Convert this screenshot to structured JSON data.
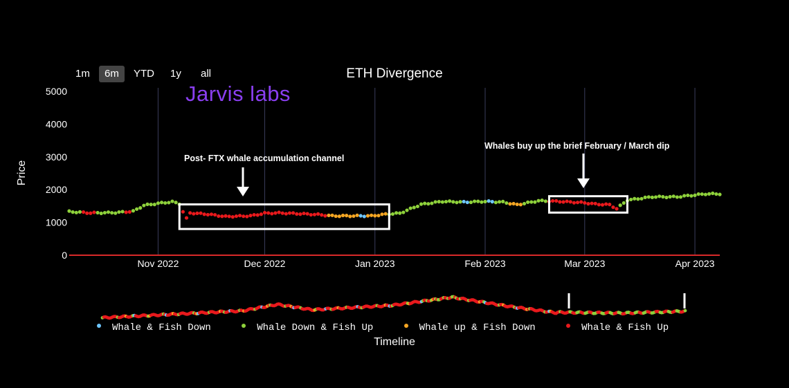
{
  "range_buttons": [
    {
      "label": "1m",
      "active": false
    },
    {
      "label": "6m",
      "active": true
    },
    {
      "label": "YTD",
      "active": false
    },
    {
      "label": "1y",
      "active": false
    },
    {
      "label": "all",
      "active": false
    }
  ],
  "logo_text": "Jarvis labs",
  "annotations": {
    "left": "Post- FTX whale accumulation channel",
    "right": "Whales buy up the brief February / March dip"
  },
  "colors": {
    "whale_fish_down": "#6ec6ff",
    "whale_down_fish_up": "#8ed13b",
    "whale_up_fish_down": "#f5a623",
    "whale_fish_up": "#e8191c",
    "axis": "#d92a2a",
    "grid": "#3a3d5c",
    "box": "#ffffff"
  },
  "chart_data": {
    "type": "scatter",
    "title": "ETH Divergence",
    "xlabel": "Timeline",
    "ylabel": "Price",
    "ylim": [
      0,
      5000
    ],
    "yticks": [
      0,
      1000,
      2000,
      3000,
      4000,
      5000
    ],
    "xlim": [
      "2022-10-07",
      "2023-04-08"
    ],
    "xticks": [
      {
        "date": "2022-11-01",
        "label": "Nov 2022"
      },
      {
        "date": "2022-12-01",
        "label": "Dec 2022"
      },
      {
        "date": "2023-01-01",
        "label": "Jan 2023"
      },
      {
        "date": "2023-02-01",
        "label": "Feb 2023"
      },
      {
        "date": "2023-03-01",
        "label": "Mar 2023"
      },
      {
        "date": "2023-04-01",
        "label": "Apr 2023"
      }
    ],
    "grid": true,
    "legend_position": "bottom",
    "series": [
      {
        "name": "Whale & Fish Down",
        "key": "whale_fish_down"
      },
      {
        "name": "Whale Down & Fish Up",
        "key": "whale_down_fish_up"
      },
      {
        "name": "Whale up & Fish Down",
        "key": "whale_up_fish_down"
      },
      {
        "name": "Whale & Fish Up",
        "key": "whale_fish_up"
      }
    ],
    "segments": [
      {
        "start": "2022-10-07",
        "end": "2022-10-11",
        "key": "whale_down_fish_up"
      },
      {
        "start": "2022-10-11",
        "end": "2022-10-15",
        "key": "whale_fish_up"
      },
      {
        "start": "2022-10-15",
        "end": "2022-10-23",
        "key": "whale_down_fish_up"
      },
      {
        "start": "2022-10-23",
        "end": "2022-10-25",
        "key": "whale_fish_up"
      },
      {
        "start": "2022-10-25",
        "end": "2022-11-08",
        "key": "whale_down_fish_up"
      },
      {
        "start": "2022-11-08",
        "end": "2022-12-19",
        "key": "whale_fish_up"
      },
      {
        "start": "2022-12-19",
        "end": "2022-12-28",
        "key": "whale_up_fish_down"
      },
      {
        "start": "2022-12-28",
        "end": "2022-12-30",
        "key": "whale_fish_down"
      },
      {
        "start": "2022-12-30",
        "end": "2023-01-05",
        "key": "whale_up_fish_down"
      },
      {
        "start": "2023-01-05",
        "end": "2023-01-26",
        "key": "whale_down_fish_up"
      },
      {
        "start": "2023-01-26",
        "end": "2023-01-28",
        "key": "whale_fish_down"
      },
      {
        "start": "2023-01-28",
        "end": "2023-02-02",
        "key": "whale_down_fish_up"
      },
      {
        "start": "2023-02-02",
        "end": "2023-02-04",
        "key": "whale_fish_down"
      },
      {
        "start": "2023-02-04",
        "end": "2023-02-08",
        "key": "whale_down_fish_up"
      },
      {
        "start": "2023-02-08",
        "end": "2023-02-12",
        "key": "whale_up_fish_down"
      },
      {
        "start": "2023-02-12",
        "end": "2023-02-19",
        "key": "whale_down_fish_up"
      },
      {
        "start": "2023-02-19",
        "end": "2023-03-11",
        "key": "whale_fish_up"
      },
      {
        "start": "2023-03-11",
        "end": "2023-04-09",
        "key": "whale_down_fish_up"
      }
    ],
    "price_path": [
      [
        "2022-10-07",
        1330
      ],
      [
        "2022-10-13",
        1290
      ],
      [
        "2022-10-20",
        1300
      ],
      [
        "2022-10-25",
        1340
      ],
      [
        "2022-10-28",
        1520
      ],
      [
        "2022-11-01",
        1580
      ],
      [
        "2022-11-05",
        1630
      ],
      [
        "2022-11-07",
        1570
      ],
      [
        "2022-11-08",
        1330
      ],
      [
        "2022-11-09",
        1120
      ],
      [
        "2022-11-10",
        1290
      ],
      [
        "2022-11-15",
        1250
      ],
      [
        "2022-11-20",
        1180
      ],
      [
        "2022-11-27",
        1200
      ],
      [
        "2022-12-01",
        1280
      ],
      [
        "2022-12-05",
        1290
      ],
      [
        "2022-12-10",
        1270
      ],
      [
        "2022-12-16",
        1240
      ],
      [
        "2022-12-20",
        1200
      ],
      [
        "2022-12-31",
        1200
      ],
      [
        "2023-01-04",
        1250
      ],
      [
        "2023-01-08",
        1280
      ],
      [
        "2023-01-14",
        1550
      ],
      [
        "2023-01-20",
        1640
      ],
      [
        "2023-01-26",
        1620
      ],
      [
        "2023-02-01",
        1640
      ],
      [
        "2023-02-06",
        1620
      ],
      [
        "2023-02-10",
        1540
      ],
      [
        "2023-02-16",
        1660
      ],
      [
        "2023-02-22",
        1640
      ],
      [
        "2023-03-01",
        1600
      ],
      [
        "2023-03-04",
        1560
      ],
      [
        "2023-03-08",
        1540
      ],
      [
        "2023-03-10",
        1420
      ],
      [
        "2023-03-13",
        1680
      ],
      [
        "2023-03-20",
        1780
      ],
      [
        "2023-03-27",
        1780
      ],
      [
        "2023-04-04",
        1870
      ],
      [
        "2023-04-08",
        1870
      ]
    ],
    "annotation_boxes": [
      {
        "start": "2022-11-07",
        "end": "2023-01-05",
        "ymin": 800,
        "ymax": 1550
      },
      {
        "start": "2023-02-19",
        "end": "2023-03-13",
        "ymin": 1300,
        "ymax": 1800
      }
    ],
    "navigator": {
      "selection": [
        "2022-10-07",
        "2023-04-08"
      ]
    }
  },
  "labels": {
    "timeline": "Timeline"
  }
}
